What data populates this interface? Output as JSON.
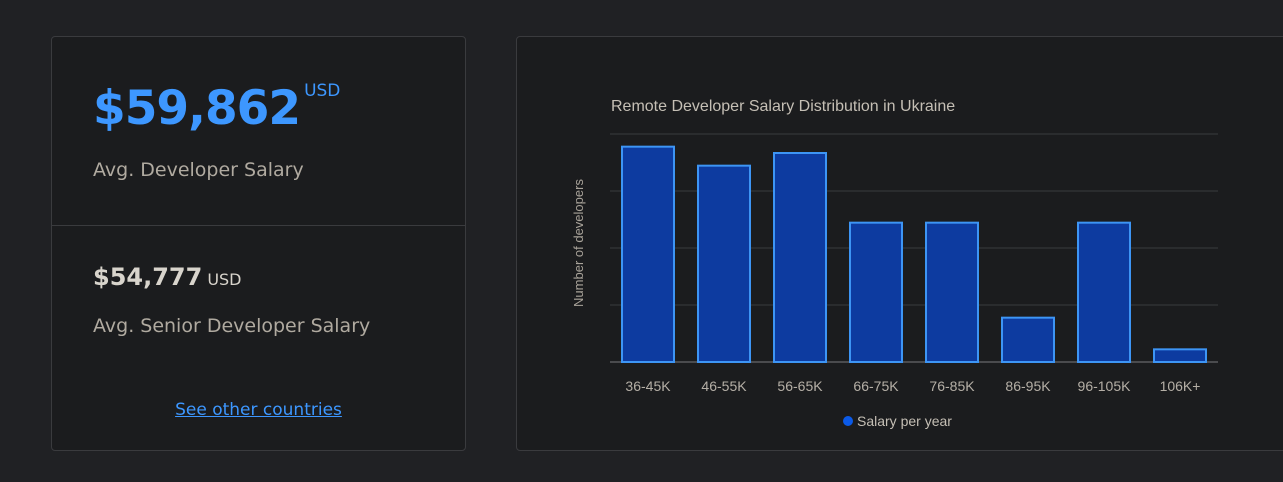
{
  "summary": {
    "avg_salary": "$59,862",
    "avg_salary_currency": "USD",
    "avg_salary_label": "Avg. Developer Salary",
    "senior_salary": "$54,777",
    "senior_salary_currency": "USD",
    "senior_salary_label": "Avg. Senior Developer Salary",
    "other_countries_link": "See other countries"
  },
  "colors": {
    "accent": "#3d97ff",
    "bar_fill": "#0d3ba0",
    "bar_stroke": "#3d95f5",
    "legend_dot": "#0b5ae8"
  },
  "chart_data": {
    "type": "bar",
    "title": "Remote Developer Salary Distribution in Ukraine",
    "xlabel": "",
    "ylabel": "Number of developers",
    "categories": [
      "36-45K",
      "46-55K",
      "56-65K",
      "66-75K",
      "76-85K",
      "86-95K",
      "96-105K",
      "106K+"
    ],
    "series": [
      {
        "name": "Salary per year",
        "values": [
          34,
          31,
          33,
          22,
          22,
          7,
          22,
          2
        ]
      }
    ],
    "ylim": [
      0,
      36
    ],
    "y_tick_labels_shown": false,
    "grid": true,
    "legend": "bottom"
  }
}
